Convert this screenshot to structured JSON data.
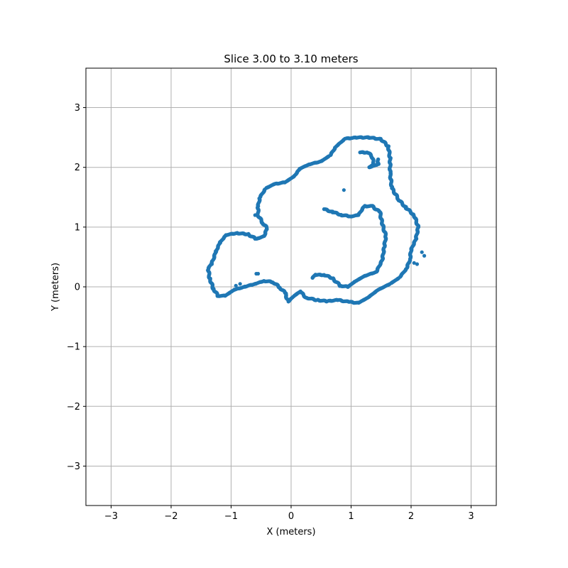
{
  "chart_data": {
    "type": "scatter",
    "title": "Slice 3.00 to 3.10 meters",
    "xlabel": "X (meters)",
    "ylabel": "Y (meters)",
    "xlim": [
      -3.42,
      3.42
    ],
    "ylim": [
      -3.66,
      3.66
    ],
    "xticks": [
      -3,
      -2,
      -1,
      0,
      1,
      2,
      3
    ],
    "yticks": [
      -3,
      -2,
      -1,
      0,
      1,
      2,
      3
    ],
    "xtick_labels": [
      "−3",
      "−2",
      "−1",
      "0",
      "1",
      "2",
      "3"
    ],
    "ytick_labels": [
      "−3",
      "−2",
      "−1",
      "0",
      "1",
      "2",
      "3"
    ],
    "grid": true,
    "marker_color": "#1f77b4",
    "series": [
      {
        "points": [
          [
            -1.3,
            0.45
          ],
          [
            -1.25,
            0.6
          ],
          [
            -1.18,
            0.75
          ],
          [
            -1.08,
            0.87
          ],
          [
            -0.9,
            0.9
          ],
          [
            -0.72,
            0.88
          ],
          [
            -0.58,
            0.8
          ],
          [
            -0.45,
            0.85
          ],
          [
            -0.4,
            0.98
          ],
          [
            -0.48,
            1.08
          ],
          [
            -0.55,
            1.2
          ],
          [
            -0.55,
            1.35
          ],
          [
            -0.52,
            1.5
          ],
          [
            -0.42,
            1.65
          ],
          [
            -0.28,
            1.72
          ],
          [
            -0.1,
            1.75
          ],
          [
            0.05,
            1.85
          ],
          [
            0.15,
            1.98
          ],
          [
            0.3,
            2.05
          ],
          [
            0.5,
            2.1
          ],
          [
            0.65,
            2.2
          ],
          [
            0.75,
            2.35
          ],
          [
            0.9,
            2.48
          ],
          [
            1.1,
            2.5
          ],
          [
            1.3,
            2.5
          ],
          [
            1.5,
            2.47
          ],
          [
            1.62,
            2.35
          ],
          [
            1.65,
            2.15
          ],
          [
            1.65,
            1.9
          ],
          [
            1.68,
            1.65
          ],
          [
            1.8,
            1.45
          ],
          [
            1.92,
            1.32
          ],
          [
            2.05,
            1.2
          ],
          [
            2.12,
            1.0
          ],
          [
            2.08,
            0.8
          ],
          [
            2.0,
            0.62
          ],
          [
            1.98,
            0.45
          ],
          [
            1.92,
            0.3
          ],
          [
            1.8,
            0.15
          ],
          [
            1.65,
            0.05
          ],
          [
            1.45,
            -0.05
          ],
          [
            1.28,
            -0.18
          ],
          [
            1.12,
            -0.27
          ],
          [
            0.95,
            -0.25
          ],
          [
            0.78,
            -0.22
          ],
          [
            0.6,
            -0.24
          ],
          [
            0.42,
            -0.22
          ],
          [
            0.25,
            -0.18
          ],
          [
            0.15,
            -0.08
          ],
          [
            0.05,
            -0.15
          ],
          [
            -0.05,
            -0.25
          ],
          [
            -0.1,
            -0.1
          ],
          [
            -0.2,
            0.0
          ],
          [
            -0.3,
            0.08
          ],
          [
            -0.45,
            0.1
          ],
          [
            -0.6,
            0.05
          ],
          [
            -0.78,
            0.0
          ],
          [
            -0.95,
            -0.05
          ],
          [
            -1.1,
            -0.15
          ],
          [
            -1.22,
            -0.15
          ],
          [
            -1.3,
            -0.02
          ],
          [
            -1.36,
            0.15
          ],
          [
            -1.38,
            0.3
          ]
        ]
      },
      {
        "points": [
          [
            0.55,
            1.3
          ],
          [
            0.7,
            1.25
          ],
          [
            0.85,
            1.2
          ],
          [
            1.0,
            1.18
          ],
          [
            1.12,
            1.2
          ],
          [
            1.22,
            1.35
          ],
          [
            1.35,
            1.35
          ],
          [
            1.48,
            1.25
          ],
          [
            1.52,
            1.05
          ],
          [
            1.58,
            0.85
          ],
          [
            1.55,
            0.65
          ],
          [
            1.52,
            0.45
          ],
          [
            1.42,
            0.25
          ],
          [
            1.22,
            0.18
          ],
          [
            1.05,
            0.08
          ],
          [
            0.95,
            0.0
          ],
          [
            0.82,
            0.02
          ],
          [
            0.68,
            0.15
          ],
          [
            0.55,
            0.2
          ],
          [
            0.4,
            0.2
          ],
          [
            0.35,
            0.14
          ]
        ]
      },
      {
        "points": [
          [
            1.15,
            2.25
          ],
          [
            1.28,
            2.25
          ],
          [
            1.35,
            2.18
          ],
          [
            1.38,
            2.05
          ],
          [
            1.3,
            2.0
          ],
          [
            1.45,
            2.05
          ],
          [
            1.45,
            2.15
          ]
        ]
      },
      {
        "points": [
          [
            0.88,
            1.62
          ],
          [
            -0.6,
            1.2
          ],
          [
            -0.58,
            0.22
          ],
          [
            -0.55,
            0.22
          ],
          [
            -0.85,
            0.05
          ],
          [
            -0.92,
            0.02
          ],
          [
            -1.32,
            0.38
          ],
          [
            2.18,
            0.58
          ],
          [
            2.22,
            0.52
          ],
          [
            2.1,
            0.38
          ],
          [
            2.05,
            0.4
          ],
          [
            -0.08,
            -0.15
          ]
        ]
      }
    ]
  }
}
